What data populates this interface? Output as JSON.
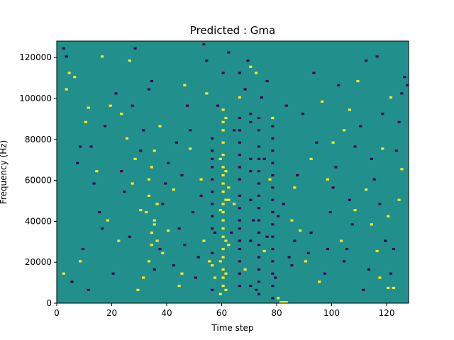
{
  "chart_data": {
    "type": "heatmap",
    "title": "Predicted : Gma",
    "xlabel": "Time step",
    "ylabel": "Frequency (Hz)",
    "xlim": [
      0,
      128
    ],
    "ylim": [
      0,
      128000
    ],
    "x_ticks": [
      0,
      20,
      40,
      60,
      80,
      100,
      120
    ],
    "y_ticks": [
      0,
      20000,
      40000,
      60000,
      80000,
      100000,
      120000
    ],
    "x_tick_labels": [
      "0",
      "20",
      "40",
      "60",
      "80",
      "100",
      "120"
    ],
    "y_tick_labels": [
      "0",
      "20000",
      "40000",
      "60000",
      "80000",
      "100000",
      "120000"
    ],
    "value_range": [
      -1,
      1
    ],
    "colors": {
      "low": "#440154",
      "mid": "#21908c",
      "high": "#fde725"
    },
    "grid": false,
    "background_value": 0,
    "high_cells": [
      [
        60,
        8
      ],
      [
        60,
        12
      ],
      [
        60,
        16
      ],
      [
        60,
        22
      ],
      [
        60,
        26
      ],
      [
        60,
        32
      ],
      [
        60,
        36
      ],
      [
        60,
        40
      ],
      [
        60,
        44
      ],
      [
        60,
        48
      ],
      [
        60,
        54
      ],
      [
        60,
        58
      ],
      [
        60,
        62
      ],
      [
        60,
        66
      ],
      [
        60,
        72
      ],
      [
        60,
        78
      ],
      [
        60,
        84
      ],
      [
        60,
        88
      ],
      [
        60,
        94
      ],
      [
        61,
        6
      ],
      [
        61,
        14
      ],
      [
        61,
        30
      ],
      [
        61,
        50
      ],
      [
        61,
        64
      ],
      [
        61,
        90
      ],
      [
        59,
        20
      ],
      [
        59,
        45
      ],
      [
        59,
        70
      ],
      [
        62,
        28
      ],
      [
        62,
        56
      ],
      [
        59,
        4
      ],
      [
        33,
        20
      ],
      [
        34,
        28
      ],
      [
        35,
        40
      ],
      [
        36,
        48
      ],
      [
        33,
        52
      ],
      [
        34,
        66
      ],
      [
        35,
        74
      ],
      [
        34,
        34
      ],
      [
        35,
        38
      ],
      [
        36,
        30
      ],
      [
        33,
        60
      ],
      [
        32,
        44
      ],
      [
        75,
        25
      ],
      [
        81,
        0
      ],
      [
        82,
        0
      ],
      [
        83,
        0
      ],
      [
        80,
        2
      ],
      [
        120,
        7
      ],
      [
        122,
        7
      ],
      [
        57,
        12
      ],
      [
        62,
        50
      ],
      [
        64,
        48
      ],
      [
        29,
        6
      ],
      [
        31,
        12
      ],
      [
        44,
        8
      ],
      [
        55,
        20
      ],
      [
        56,
        18
      ],
      [
        6,
        110
      ],
      [
        11,
        95
      ],
      [
        16,
        120
      ],
      [
        25,
        80
      ],
      [
        28,
        70
      ],
      [
        30,
        45
      ],
      [
        40,
        35
      ],
      [
        42,
        55
      ],
      [
        48,
        75
      ],
      [
        52,
        60
      ],
      [
        66,
        100
      ],
      [
        70,
        115
      ],
      [
        78,
        90
      ],
      [
        85,
        40
      ],
      [
        88,
        35
      ],
      [
        90,
        20
      ],
      [
        95,
        10
      ],
      [
        98,
        60
      ],
      [
        103,
        30
      ],
      [
        108,
        45
      ],
      [
        112,
        55
      ],
      [
        116,
        25
      ],
      [
        118,
        75
      ],
      [
        125,
        65
      ],
      [
        121,
        100
      ],
      [
        124,
        50
      ],
      [
        10,
        88
      ],
      [
        4,
        112
      ],
      [
        14,
        64
      ],
      [
        19,
        96
      ],
      [
        22,
        30
      ],
      [
        23,
        92
      ],
      [
        38,
        24
      ],
      [
        45,
        14
      ],
      [
        53,
        30
      ],
      [
        68,
        16
      ],
      [
        72,
        112
      ],
      [
        86,
        56
      ],
      [
        92,
        70
      ],
      [
        100,
        78
      ],
      [
        106,
        94
      ],
      [
        109,
        108
      ],
      [
        114,
        38
      ],
      [
        120,
        42
      ],
      [
        8,
        20
      ],
      [
        18,
        40
      ],
      [
        27,
        58
      ],
      [
        37,
        86
      ],
      [
        46,
        106
      ],
      [
        54,
        102
      ],
      [
        2,
        14
      ],
      [
        3,
        104
      ],
      [
        26,
        118
      ],
      [
        77,
        60
      ],
      [
        96,
        98
      ],
      [
        104,
        84
      ],
      [
        117,
        12
      ]
    ],
    "low_cells": [
      [
        66,
        8
      ],
      [
        66,
        14
      ],
      [
        66,
        20
      ],
      [
        66,
        26
      ],
      [
        66,
        30
      ],
      [
        66,
        36
      ],
      [
        66,
        40
      ],
      [
        66,
        46
      ],
      [
        66,
        52
      ],
      [
        66,
        60
      ],
      [
        66,
        66
      ],
      [
        66,
        72
      ],
      [
        66,
        78
      ],
      [
        66,
        84
      ],
      [
        66,
        90
      ],
      [
        66,
        100
      ],
      [
        66,
        112
      ],
      [
        73,
        4
      ],
      [
        73,
        10
      ],
      [
        73,
        16
      ],
      [
        73,
        22
      ],
      [
        73,
        28
      ],
      [
        73,
        34
      ],
      [
        73,
        40
      ],
      [
        73,
        46
      ],
      [
        73,
        52
      ],
      [
        73,
        58
      ],
      [
        73,
        64
      ],
      [
        73,
        70
      ],
      [
        73,
        76
      ],
      [
        73,
        84
      ],
      [
        73,
        90
      ],
      [
        78,
        2
      ],
      [
        78,
        8
      ],
      [
        78,
        14
      ],
      [
        78,
        20
      ],
      [
        78,
        26
      ],
      [
        78,
        32
      ],
      [
        78,
        38
      ],
      [
        78,
        44
      ],
      [
        78,
        50
      ],
      [
        78,
        56
      ],
      [
        78,
        62
      ],
      [
        78,
        68
      ],
      [
        78,
        74
      ],
      [
        78,
        80
      ],
      [
        78,
        86
      ],
      [
        56,
        6
      ],
      [
        56,
        24
      ],
      [
        56,
        36
      ],
      [
        56,
        42
      ],
      [
        56,
        48
      ],
      [
        56,
        54
      ],
      [
        56,
        60
      ],
      [
        56,
        66
      ],
      [
        56,
        70
      ],
      [
        56,
        74
      ],
      [
        56,
        80
      ],
      [
        70,
        8
      ],
      [
        70,
        30
      ],
      [
        70,
        50
      ],
      [
        70,
        64
      ],
      [
        70,
        70
      ],
      [
        70,
        88
      ],
      [
        70,
        92
      ],
      [
        5,
        10
      ],
      [
        9,
        26
      ],
      [
        12,
        76
      ],
      [
        15,
        44
      ],
      [
        20,
        14
      ],
      [
        21,
        102
      ],
      [
        24,
        54
      ],
      [
        26,
        32
      ],
      [
        30,
        74
      ],
      [
        38,
        48
      ],
      [
        40,
        68
      ],
      [
        42,
        18
      ],
      [
        44,
        36
      ],
      [
        48,
        84
      ],
      [
        50,
        12
      ],
      [
        52,
        52
      ],
      [
        58,
        96
      ],
      [
        63,
        34
      ],
      [
        68,
        104
      ],
      [
        75,
        70
      ],
      [
        80,
        42
      ],
      [
        84,
        22
      ],
      [
        87,
        62
      ],
      [
        89,
        92
      ],
      [
        92,
        34
      ],
      [
        94,
        78
      ],
      [
        97,
        14
      ],
      [
        100,
        56
      ],
      [
        102,
        106
      ],
      [
        105,
        26
      ],
      [
        107,
        38
      ],
      [
        110,
        86
      ],
      [
        113,
        16
      ],
      [
        115,
        60
      ],
      [
        118,
        92
      ],
      [
        119,
        30
      ],
      [
        123,
        74
      ],
      [
        126,
        110
      ],
      [
        3,
        120
      ],
      [
        7,
        68
      ],
      [
        13,
        58
      ],
      [
        17,
        86
      ],
      [
        23,
        64
      ],
      [
        27,
        96
      ],
      [
        33,
        104
      ],
      [
        35,
        16
      ],
      [
        37,
        26
      ],
      [
        39,
        58
      ],
      [
        43,
        78
      ],
      [
        46,
        28
      ],
      [
        49,
        44
      ],
      [
        51,
        22
      ],
      [
        54,
        118
      ],
      [
        57,
        34
      ],
      [
        62,
        122
      ],
      [
        69,
        118
      ],
      [
        74,
        100
      ],
      [
        76,
        108
      ],
      [
        82,
        48
      ],
      [
        85,
        18
      ],
      [
        91,
        24
      ],
      [
        99,
        44
      ],
      [
        104,
        20
      ],
      [
        111,
        6
      ],
      [
        116,
        120
      ],
      [
        122,
        26
      ],
      [
        125,
        102
      ],
      [
        2,
        124
      ],
      [
        8,
        76
      ],
      [
        11,
        6
      ],
      [
        16,
        36
      ],
      [
        28,
        124
      ],
      [
        31,
        84
      ],
      [
        34,
        108
      ],
      [
        45,
        62
      ],
      [
        47,
        96
      ],
      [
        53,
        126
      ],
      [
        60,
        112
      ],
      [
        64,
        84
      ],
      [
        71,
        40
      ],
      [
        72,
        6
      ],
      [
        76,
        32
      ],
      [
        79,
        12
      ],
      [
        83,
        96
      ],
      [
        86,
        30
      ],
      [
        93,
        112
      ],
      [
        98,
        26
      ],
      [
        101,
        66
      ],
      [
        106,
        50
      ],
      [
        108,
        76
      ],
      [
        112,
        118
      ],
      [
        114,
        70
      ],
      [
        117,
        48
      ],
      [
        121,
        14
      ],
      [
        124,
        88
      ],
      [
        127,
        106
      ]
    ]
  }
}
